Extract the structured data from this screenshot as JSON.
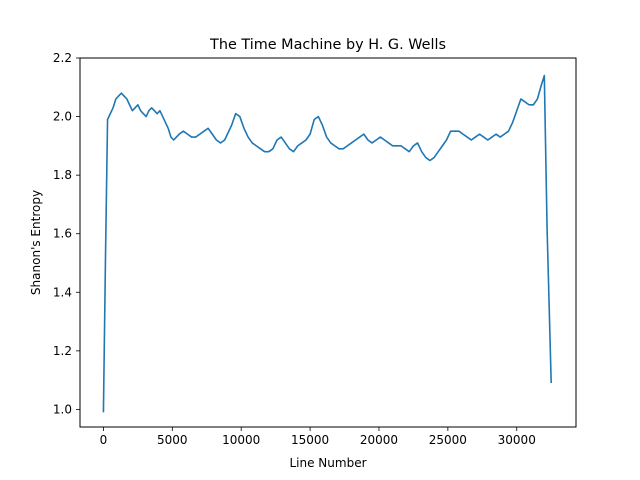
{
  "chart_data": {
    "type": "line",
    "title": "The Time Machine by H. G. Wells",
    "xlabel": "Line Number",
    "ylabel": "Shanon's Entropy",
    "xlim": [
      -1700,
      34300
    ],
    "ylim": [
      0.94,
      2.2
    ],
    "x_ticks": [
      0,
      5000,
      10000,
      15000,
      20000,
      25000,
      30000
    ],
    "y_ticks": [
      1.0,
      1.2,
      1.4,
      1.6,
      1.8,
      2.0,
      2.2
    ],
    "x_tick_labels": [
      "0",
      "5000",
      "10000",
      "15000",
      "20000",
      "25000",
      "30000"
    ],
    "y_tick_labels": [
      "1.0",
      "1.2",
      "1.4",
      "1.6",
      "1.8",
      "2.0",
      "2.2"
    ],
    "grid": false,
    "series": [
      {
        "color": "#1f77b4",
        "x": [
          0,
          150,
          300,
          500,
          700,
          900,
          1100,
          1300,
          1500,
          1700,
          1900,
          2100,
          2300,
          2500,
          2700,
          2900,
          3100,
          3300,
          3500,
          3700,
          3900,
          4100,
          4300,
          4500,
          4700,
          4900,
          5100,
          5300,
          5500,
          5800,
          6100,
          6400,
          6700,
          7000,
          7300,
          7600,
          7900,
          8200,
          8500,
          8800,
          9000,
          9300,
          9600,
          9900,
          10200,
          10500,
          10800,
          11100,
          11400,
          11700,
          12000,
          12300,
          12600,
          12900,
          13200,
          13500,
          13800,
          14100,
          14400,
          14700,
          15000,
          15300,
          15600,
          15900,
          16200,
          16500,
          16800,
          17100,
          17400,
          17700,
          18000,
          18300,
          18600,
          18900,
          19200,
          19500,
          19800,
          20100,
          20400,
          20700,
          21000,
          21300,
          21600,
          21900,
          22200,
          22500,
          22800,
          23100,
          23400,
          23700,
          24000,
          24300,
          24600,
          24900,
          25200,
          25500,
          25800,
          26100,
          26400,
          26700,
          27000,
          27300,
          27600,
          27900,
          28200,
          28500,
          28800,
          29100,
          29400,
          29700,
          30000,
          30300,
          30600,
          30900,
          31200,
          31500,
          31800,
          32000,
          32200,
          32500
        ],
        "y": [
          0.99,
          1.52,
          1.99,
          2.01,
          2.03,
          2.06,
          2.07,
          2.08,
          2.07,
          2.06,
          2.04,
          2.02,
          2.03,
          2.04,
          2.02,
          2.01,
          2.0,
          2.02,
          2.03,
          2.02,
          2.01,
          2.02,
          2.0,
          1.98,
          1.96,
          1.93,
          1.92,
          1.93,
          1.94,
          1.95,
          1.94,
          1.93,
          1.93,
          1.94,
          1.95,
          1.96,
          1.94,
          1.92,
          1.91,
          1.92,
          1.94,
          1.97,
          2.01,
          2.0,
          1.96,
          1.93,
          1.91,
          1.9,
          1.89,
          1.88,
          1.88,
          1.89,
          1.92,
          1.93,
          1.91,
          1.89,
          1.88,
          1.9,
          1.91,
          1.92,
          1.94,
          1.99,
          2.0,
          1.97,
          1.93,
          1.91,
          1.9,
          1.89,
          1.89,
          1.9,
          1.91,
          1.92,
          1.93,
          1.94,
          1.92,
          1.91,
          1.92,
          1.93,
          1.92,
          1.91,
          1.9,
          1.9,
          1.9,
          1.89,
          1.88,
          1.9,
          1.91,
          1.88,
          1.86,
          1.85,
          1.86,
          1.88,
          1.9,
          1.92,
          1.95,
          1.95,
          1.95,
          1.94,
          1.93,
          1.92,
          1.93,
          1.94,
          1.93,
          1.92,
          1.93,
          1.94,
          1.93,
          1.94,
          1.95,
          1.98,
          2.02,
          2.06,
          2.05,
          2.04,
          2.04,
          2.06,
          2.11,
          2.14,
          1.62,
          1.09
        ]
      }
    ]
  }
}
